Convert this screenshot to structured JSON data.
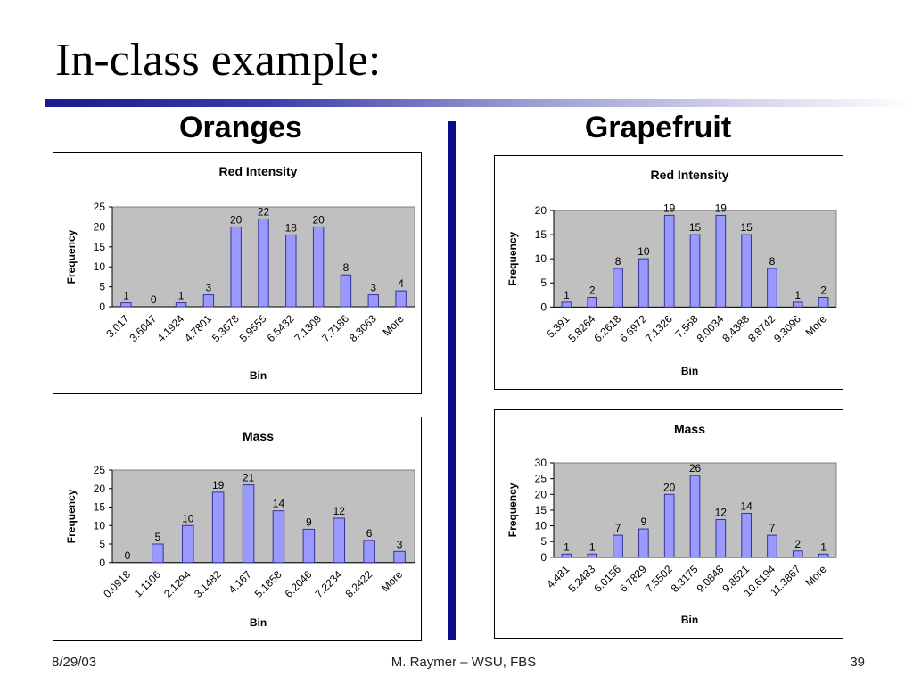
{
  "slide": {
    "title": "In-class example:",
    "columns": [
      "Oranges",
      "Grapefruit"
    ],
    "footer": {
      "date": "8/29/03",
      "author": "M. Raymer – WSU, FBS",
      "page": "39"
    }
  },
  "colors": {
    "bar_fill": "#9999ff",
    "bar_stroke": "#333399",
    "plot_bg": "#c0c0c0",
    "rule_accent": "#0d0d8c"
  },
  "chart_data": [
    {
      "id": "oranges-red",
      "type": "bar",
      "title": "Red Intensity",
      "xlabel": "Bin",
      "ylabel": "Frequency",
      "ylim": [
        0,
        25
      ],
      "yticks": [
        0,
        5,
        10,
        15,
        20,
        25
      ],
      "categories": [
        "3.017",
        "3.6047",
        "4.1924",
        "4.7801",
        "5.3678",
        "5.9555",
        "6.5432",
        "7.1309",
        "7.7186",
        "8.3063",
        "More"
      ],
      "values": [
        1,
        0,
        1,
        3,
        20,
        22,
        18,
        20,
        8,
        3,
        4
      ],
      "grid": false,
      "legend": "none"
    },
    {
      "id": "oranges-mass",
      "type": "bar",
      "title": "Mass",
      "xlabel": "Bin",
      "ylabel": "Frequency",
      "ylim": [
        0,
        25
      ],
      "yticks": [
        0,
        5,
        10,
        15,
        20,
        25
      ],
      "categories": [
        "0.0918",
        "1.1106",
        "2.1294",
        "3.1482",
        "4.167",
        "5.1858",
        "6.2046",
        "7.2234",
        "8.2422",
        "More"
      ],
      "values": [
        0,
        5,
        10,
        19,
        21,
        14,
        9,
        12,
        6,
        3
      ],
      "grid": false,
      "legend": "none"
    },
    {
      "id": "grapefruit-red",
      "type": "bar",
      "title": "Red Intensity",
      "xlabel": "Bin",
      "ylabel": "Frequency",
      "ylim": [
        0,
        20
      ],
      "yticks": [
        0,
        5,
        10,
        15,
        20
      ],
      "categories": [
        "5.391",
        "5.8264",
        "6.2618",
        "6.6972",
        "7.1326",
        "7.568",
        "8.0034",
        "8.4388",
        "8.8742",
        "9.3096",
        "More"
      ],
      "values": [
        1,
        2,
        8,
        10,
        19,
        15,
        19,
        15,
        8,
        1,
        2
      ],
      "grid": false,
      "legend": "none"
    },
    {
      "id": "grapefruit-mass",
      "type": "bar",
      "title": "Mass",
      "xlabel": "Bin",
      "ylabel": "Frequency",
      "ylim": [
        0,
        30
      ],
      "yticks": [
        0,
        5,
        10,
        15,
        20,
        25,
        30
      ],
      "categories": [
        "4.481",
        "5.2483",
        "6.0156",
        "6.7829",
        "7.5502",
        "8.3175",
        "9.0848",
        "9.8521",
        "10.6194",
        "11.3867",
        "More"
      ],
      "values": [
        1,
        1,
        7,
        9,
        20,
        26,
        12,
        14,
        7,
        2,
        1
      ],
      "grid": false,
      "legend": "none"
    }
  ]
}
